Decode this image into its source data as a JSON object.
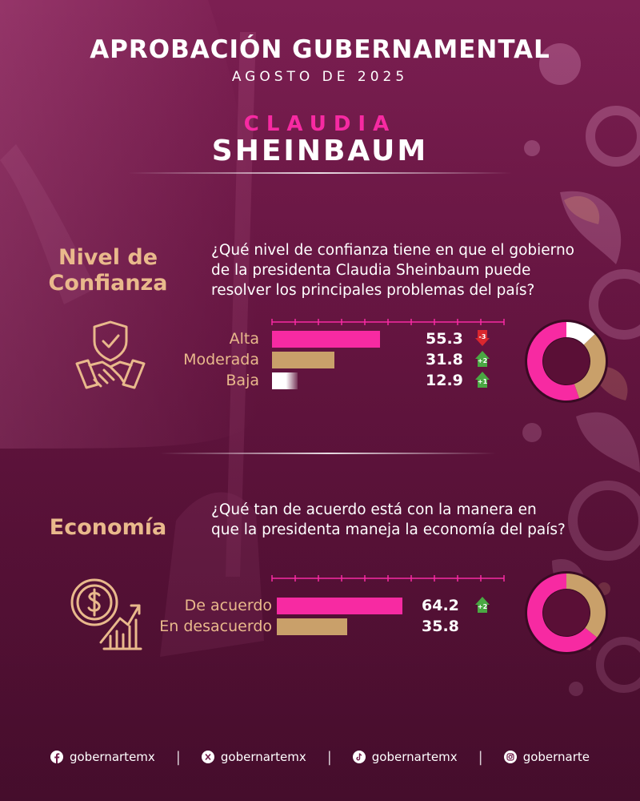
{
  "header": {
    "title": "APROBACIÓN GUBERNAMENTAL",
    "subtitle": "AGOSTO DE 2025",
    "name_first": "CLAUDIA",
    "name_last": "SHEINBAUM"
  },
  "colors": {
    "background": "#6e1746",
    "pink": "#f72aa2",
    "gold": "#c9a06a",
    "white": "#ffffff",
    "badge_down": "#d9272e",
    "badge_up": "#4aa843"
  },
  "chart_data": [
    {
      "type": "bar",
      "section_title": [
        "Nivel de",
        "Confianza"
      ],
      "question": [
        "¿Qué nivel de confianza tiene en que el gobierno",
        "de la presidenta Claudia Sheinbaum puede",
        "resolver los principales problemas del país?"
      ],
      "icon": "handshake-shield-icon",
      "categories": [
        "Alta",
        "Moderada",
        "Baja"
      ],
      "values": [
        55.3,
        31.8,
        12.9
      ],
      "value_labels": [
        "55.3",
        "31.8",
        "12.9"
      ],
      "changes": [
        {
          "label": "-3",
          "direction": "down"
        },
        {
          "label": "+2",
          "direction": "up"
        },
        {
          "label": "+1",
          "direction": "up"
        }
      ],
      "bar_colors": [
        "#f72aa2",
        "#c9a06a",
        "#ffffff"
      ],
      "ylim": [
        0,
        100
      ],
      "donut": {
        "values": [
          55.3,
          31.8,
          12.9
        ],
        "colors": [
          "#f72aa2",
          "#c9a06a",
          "#ffffff"
        ]
      }
    },
    {
      "type": "bar",
      "section_title": [
        "Economía"
      ],
      "question": [
        "¿Qué tan de acuerdo está con la manera en",
        "que la presidenta maneja la economía del país?"
      ],
      "icon": "dollar-growth-chart-icon",
      "categories": [
        "De acuerdo",
        "En desacuerdo"
      ],
      "values": [
        64.2,
        35.8
      ],
      "value_labels": [
        "64.2",
        "35.8"
      ],
      "changes": [
        {
          "label": "+2",
          "direction": "up"
        },
        null
      ],
      "bar_colors": [
        "#f72aa2",
        "#c9a06a"
      ],
      "ylim": [
        0,
        100
      ],
      "donut": {
        "values": [
          64.2,
          35.8
        ],
        "colors": [
          "#f72aa2",
          "#c9a06a"
        ]
      }
    }
  ],
  "footer": {
    "socials": [
      {
        "icon": "facebook-icon",
        "handle": "gobernartemx"
      },
      {
        "icon": "x-icon",
        "handle": "gobernartemx"
      },
      {
        "icon": "tiktok-icon",
        "handle": "gobernartemx"
      },
      {
        "icon": "instagram-icon",
        "handle": "gobernarte"
      }
    ]
  }
}
